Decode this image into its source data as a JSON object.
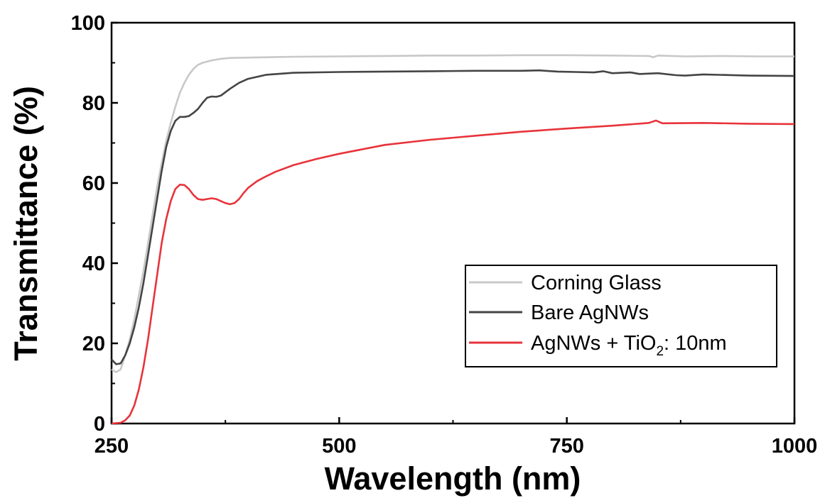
{
  "chart_data": {
    "type": "line",
    "xlabel": "Wavelength (nm)",
    "ylabel": "Transmittance (%)",
    "xlim": [
      250,
      1000
    ],
    "ylim": [
      0,
      100
    ],
    "xticks": [
      "250",
      "500",
      "750",
      "1000"
    ],
    "yticks": [
      "0",
      "20",
      "40",
      "60",
      "80",
      "100"
    ],
    "grid": false,
    "legend_position": "bottom-right",
    "series": [
      {
        "name": "Corning Glass",
        "color": "#c8c8c8",
        "points": [
          [
            250,
            13.5
          ],
          [
            255,
            12.8
          ],
          [
            260,
            13.5
          ],
          [
            265,
            17
          ],
          [
            270,
            21
          ],
          [
            275,
            26
          ],
          [
            280,
            32
          ],
          [
            285,
            38
          ],
          [
            290,
            45
          ],
          [
            295,
            52
          ],
          [
            300,
            59
          ],
          [
            305,
            65
          ],
          [
            310,
            70.5
          ],
          [
            315,
            75
          ],
          [
            320,
            79
          ],
          [
            325,
            82.5
          ],
          [
            330,
            85
          ],
          [
            335,
            87
          ],
          [
            340,
            88.5
          ],
          [
            345,
            89.5
          ],
          [
            350,
            90
          ],
          [
            360,
            90.6
          ],
          [
            370,
            91
          ],
          [
            380,
            91.2
          ],
          [
            400,
            91.3
          ],
          [
            450,
            91.5
          ],
          [
            500,
            91.6
          ],
          [
            550,
            91.7
          ],
          [
            600,
            91.8
          ],
          [
            650,
            91.8
          ],
          [
            700,
            91.9
          ],
          [
            750,
            91.9
          ],
          [
            800,
            91.8
          ],
          [
            840,
            91.7
          ],
          [
            845,
            91.4
          ],
          [
            850,
            91.8
          ],
          [
            880,
            91.6
          ],
          [
            920,
            91.7
          ],
          [
            960,
            91.6
          ],
          [
            1000,
            91.6
          ]
        ]
      },
      {
        "name": "Bare AgNWs",
        "color": "#444444",
        "points": [
          [
            250,
            16
          ],
          [
            255,
            14.8
          ],
          [
            260,
            15
          ],
          [
            265,
            17
          ],
          [
            270,
            20
          ],
          [
            275,
            24
          ],
          [
            280,
            29
          ],
          [
            285,
            35
          ],
          [
            290,
            42
          ],
          [
            295,
            49
          ],
          [
            300,
            56
          ],
          [
            305,
            63
          ],
          [
            310,
            69
          ],
          [
            315,
            73
          ],
          [
            320,
            75.5
          ],
          [
            325,
            76.5
          ],
          [
            330,
            76.5
          ],
          [
            335,
            76.7
          ],
          [
            340,
            77.5
          ],
          [
            345,
            78.5
          ],
          [
            350,
            80
          ],
          [
            355,
            81.3
          ],
          [
            360,
            81.6
          ],
          [
            365,
            81.5
          ],
          [
            370,
            81.8
          ],
          [
            380,
            83.5
          ],
          [
            390,
            85
          ],
          [
            400,
            86
          ],
          [
            420,
            87
          ],
          [
            450,
            87.5
          ],
          [
            500,
            87.7
          ],
          [
            550,
            87.8
          ],
          [
            600,
            87.9
          ],
          [
            650,
            88
          ],
          [
            700,
            88
          ],
          [
            720,
            88.1
          ],
          [
            740,
            87.8
          ],
          [
            760,
            87.7
          ],
          [
            780,
            87.6
          ],
          [
            790,
            87.9
          ],
          [
            800,
            87.4
          ],
          [
            820,
            87.6
          ],
          [
            830,
            87.2
          ],
          [
            850,
            87.4
          ],
          [
            870,
            86.9
          ],
          [
            880,
            86.8
          ],
          [
            900,
            87.1
          ],
          [
            950,
            86.8
          ],
          [
            1000,
            86.7
          ]
        ]
      },
      {
        "name": "AgNWs + TiO₂: 10nm",
        "name_parts": [
          "AgNWs + TiO",
          "2",
          ": 10nm"
        ],
        "color": "#e8333b",
        "points": [
          [
            250,
            0
          ],
          [
            260,
            0.2
          ],
          [
            265,
            0.8
          ],
          [
            270,
            2
          ],
          [
            275,
            4.5
          ],
          [
            280,
            8.5
          ],
          [
            285,
            14
          ],
          [
            290,
            21
          ],
          [
            295,
            29
          ],
          [
            300,
            37
          ],
          [
            305,
            45
          ],
          [
            310,
            51
          ],
          [
            315,
            55.5
          ],
          [
            320,
            58.5
          ],
          [
            325,
            59.6
          ],
          [
            330,
            59.5
          ],
          [
            335,
            58.5
          ],
          [
            340,
            57
          ],
          [
            345,
            56
          ],
          [
            350,
            55.8
          ],
          [
            355,
            56
          ],
          [
            360,
            56.2
          ],
          [
            365,
            56
          ],
          [
            370,
            55.5
          ],
          [
            375,
            55
          ],
          [
            380,
            54.7
          ],
          [
            385,
            55
          ],
          [
            390,
            56
          ],
          [
            395,
            57.5
          ],
          [
            400,
            58.8
          ],
          [
            410,
            60.5
          ],
          [
            420,
            61.7
          ],
          [
            430,
            62.8
          ],
          [
            450,
            64.5
          ],
          [
            475,
            66
          ],
          [
            500,
            67.3
          ],
          [
            550,
            69.5
          ],
          [
            600,
            70.8
          ],
          [
            650,
            71.8
          ],
          [
            700,
            72.8
          ],
          [
            750,
            73.6
          ],
          [
            800,
            74.3
          ],
          [
            840,
            75
          ],
          [
            848,
            75.6
          ],
          [
            855,
            74.9
          ],
          [
            900,
            75
          ],
          [
            950,
            74.8
          ],
          [
            1000,
            74.7
          ]
        ]
      }
    ]
  }
}
